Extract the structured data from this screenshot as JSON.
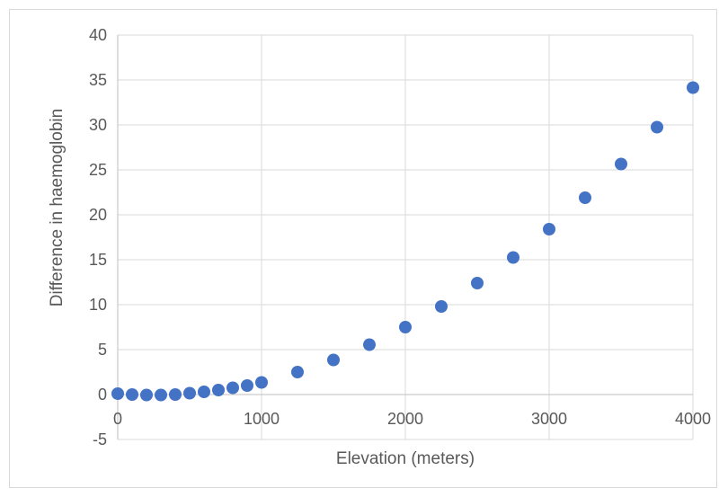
{
  "chart_data": {
    "type": "scatter",
    "title": "",
    "xlabel": "Elevation (meters)",
    "ylabel": "Difference in haemoglobin",
    "xlim": [
      0,
      4000
    ],
    "ylim": [
      -5,
      40
    ],
    "xticks": [
      0,
      1000,
      2000,
      3000,
      4000
    ],
    "yticks": [
      -5,
      0,
      5,
      10,
      15,
      20,
      25,
      30,
      35,
      40
    ],
    "x_tick_labels": [
      "0",
      "1000",
      "2000",
      "3000",
      "4000"
    ],
    "y_tick_labels": [
      "-5",
      "0",
      "5",
      "10",
      "15",
      "20",
      "25",
      "30",
      "35",
      "40"
    ],
    "grid": true,
    "legend": "none",
    "marker_color": "#4472c4",
    "gridline_color": "#d9d9d9",
    "series": [
      {
        "x": [
          0,
          100,
          200,
          300,
          400,
          500,
          600,
          700,
          800,
          900,
          1000,
          1250,
          1500,
          1750,
          2000,
          2250,
          2500,
          2750,
          3000,
          3250,
          3500,
          3750,
          4000
        ],
        "y": [
          0.1,
          0.0,
          -0.05,
          -0.05,
          0.0,
          0.15,
          0.3,
          0.5,
          0.75,
          1.0,
          1.35,
          2.5,
          3.85,
          5.55,
          7.5,
          9.8,
          12.4,
          15.25,
          18.4,
          21.9,
          25.65,
          29.75,
          34.15
        ]
      }
    ]
  }
}
